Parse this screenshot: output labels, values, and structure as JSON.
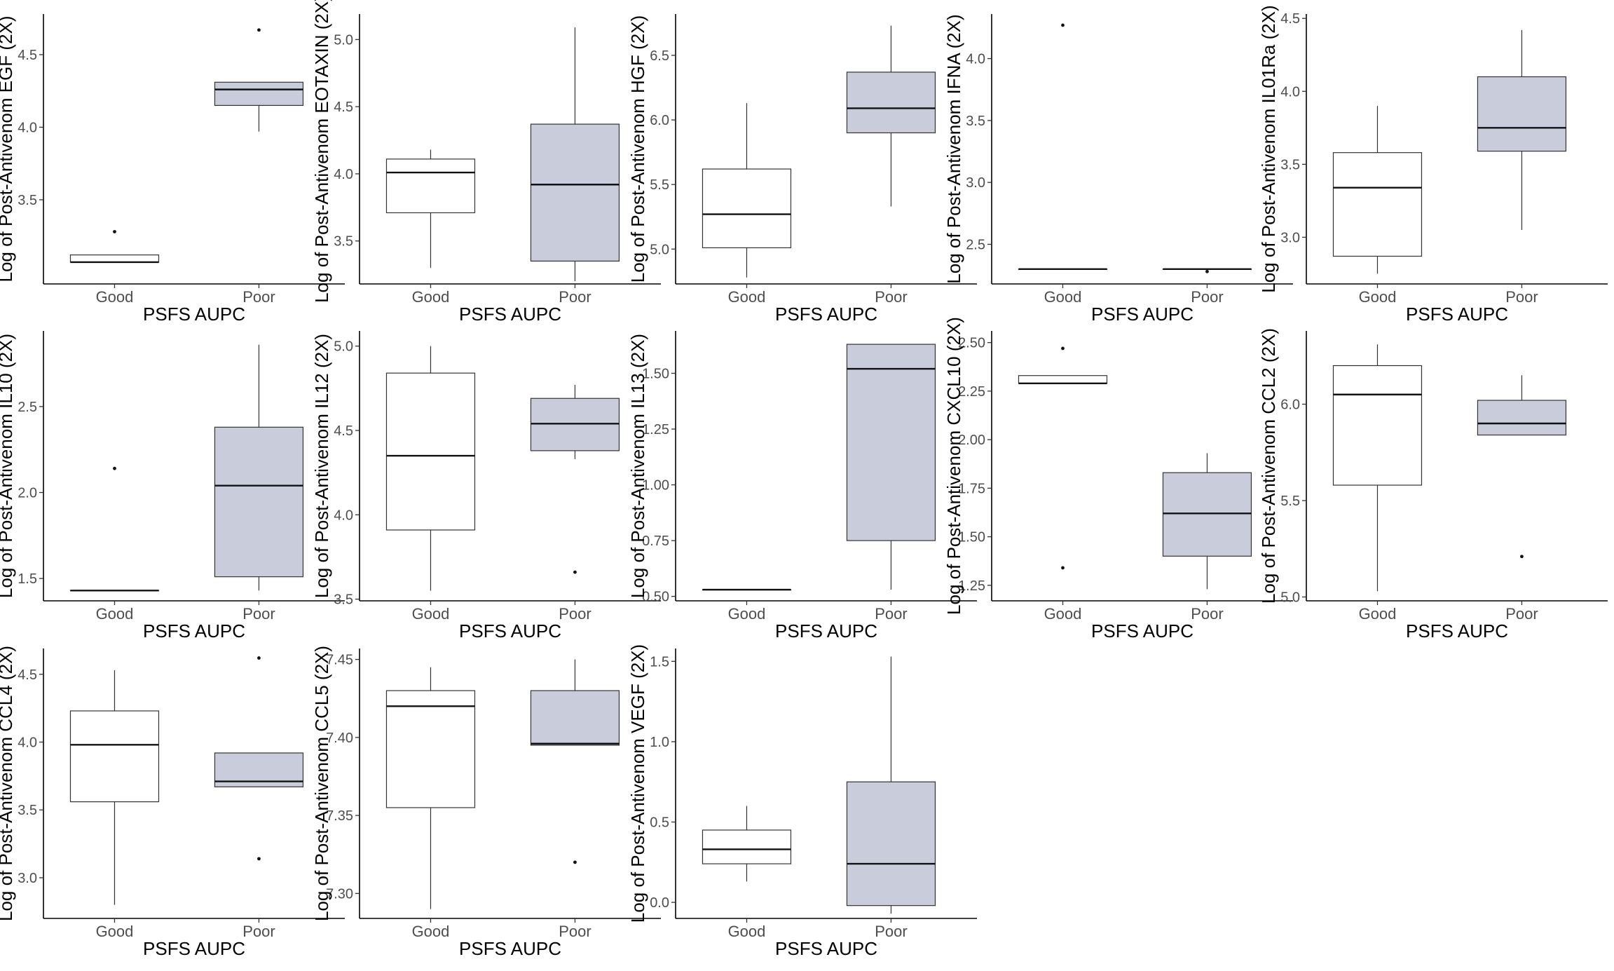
{
  "colors": {
    "good_fill": "#ffffff",
    "poor_fill": "#c9ccdb",
    "stroke": "#333333",
    "axis": "#000000"
  },
  "chart_data": [
    {
      "type": "box",
      "title": "",
      "xlabel": "PSFS AUPC",
      "ylabel": "Log of Post-Antivenom EGF (2X)",
      "categories": [
        "Good",
        "Poor"
      ],
      "ylim": [
        2.92,
        4.78
      ],
      "yticks": [
        {
          "v": 3.5,
          "label": "3.5"
        },
        {
          "v": 4.0,
          "label": "4.0"
        },
        {
          "v": 4.5,
          "label": "4.5"
        }
      ],
      "boxes": [
        {
          "q1": 3.07,
          "median": 3.07,
          "q3": 3.12,
          "whisker_low": 3.07,
          "whisker_high": 3.12,
          "outliers": [
            3.28
          ]
        },
        {
          "q1": 4.15,
          "median": 4.26,
          "q3": 4.31,
          "whisker_low": 3.97,
          "whisker_high": 4.31,
          "outliers": [
            4.67
          ]
        }
      ]
    },
    {
      "type": "box",
      "title": "",
      "xlabel": "PSFS AUPC",
      "ylabel": "Log of Post-Antivenom EOTAXIN (2X)",
      "categories": [
        "Good",
        "Poor"
      ],
      "ylim": [
        3.18,
        5.19
      ],
      "yticks": [
        {
          "v": 3.5,
          "label": "3.5"
        },
        {
          "v": 4.0,
          "label": "4.0"
        },
        {
          "v": 4.5,
          "label": "4.5"
        },
        {
          "v": 5.0,
          "label": "5.0"
        }
      ],
      "boxes": [
        {
          "q1": 3.71,
          "median": 4.01,
          "q3": 4.11,
          "whisker_low": 3.3,
          "whisker_high": 4.18,
          "outliers": []
        },
        {
          "q1": 3.35,
          "median": 3.92,
          "q3": 4.37,
          "whisker_low": 3.2,
          "whisker_high": 5.09,
          "outliers": []
        }
      ]
    },
    {
      "type": "box",
      "title": "",
      "xlabel": "PSFS AUPC",
      "ylabel": "Log of Post-Antivenom HGF (2X)",
      "categories": [
        "Good",
        "Poor"
      ],
      "ylim": [
        4.73,
        6.82
      ],
      "yticks": [
        {
          "v": 5.0,
          "label": "5.0"
        },
        {
          "v": 5.5,
          "label": "5.5"
        },
        {
          "v": 6.0,
          "label": "6.0"
        },
        {
          "v": 6.5,
          "label": "6.5"
        }
      ],
      "boxes": [
        {
          "q1": 5.01,
          "median": 5.27,
          "q3": 5.62,
          "whisker_low": 4.78,
          "whisker_high": 6.13,
          "outliers": []
        },
        {
          "q1": 5.9,
          "median": 6.09,
          "q3": 6.37,
          "whisker_low": 5.33,
          "whisker_high": 6.73,
          "outliers": []
        }
      ]
    },
    {
      "type": "box",
      "title": "",
      "xlabel": "PSFS AUPC",
      "ylabel": "Log of Post-Antivenom IFNA (2X)",
      "categories": [
        "Good",
        "Poor"
      ],
      "ylim": [
        2.18,
        4.36
      ],
      "yticks": [
        {
          "v": 2.5,
          "label": "2.5"
        },
        {
          "v": 3.0,
          "label": "3.0"
        },
        {
          "v": 3.5,
          "label": "3.5"
        },
        {
          "v": 4.0,
          "label": "4.0"
        }
      ],
      "boxes": [
        {
          "q1": 2.3,
          "median": 2.3,
          "q3": 2.3,
          "whisker_low": 2.3,
          "whisker_high": 2.3,
          "outliers": [
            4.27
          ]
        },
        {
          "q1": 2.3,
          "median": 2.3,
          "q3": 2.3,
          "whisker_low": 2.3,
          "whisker_high": 2.3,
          "outliers": [
            2.28
          ]
        }
      ]
    },
    {
      "type": "box",
      "title": "",
      "xlabel": "PSFS AUPC",
      "ylabel": "Log of Post-Antivenom IL01Ra (2X)",
      "categories": [
        "Good",
        "Poor"
      ],
      "ylim": [
        2.68,
        4.53
      ],
      "yticks": [
        {
          "v": 3.0,
          "label": "3.0"
        },
        {
          "v": 3.5,
          "label": "3.5"
        },
        {
          "v": 4.0,
          "label": "4.0"
        },
        {
          "v": 4.5,
          "label": "4.5"
        }
      ],
      "boxes": [
        {
          "q1": 2.87,
          "median": 3.34,
          "q3": 3.58,
          "whisker_low": 2.75,
          "whisker_high": 3.9,
          "outliers": []
        },
        {
          "q1": 3.59,
          "median": 3.75,
          "q3": 4.1,
          "whisker_low": 3.05,
          "whisker_high": 4.42,
          "outliers": []
        }
      ]
    },
    {
      "type": "box",
      "title": "",
      "xlabel": "PSFS AUPC",
      "ylabel": "Log of Post-Antivenom IL10 (2X)",
      "categories": [
        "Good",
        "Poor"
      ],
      "ylim": [
        1.37,
        2.94
      ],
      "yticks": [
        {
          "v": 1.5,
          "label": "1.5"
        },
        {
          "v": 2.0,
          "label": "2.0"
        },
        {
          "v": 2.5,
          "label": "2.5"
        }
      ],
      "boxes": [
        {
          "q1": 1.43,
          "median": 1.43,
          "q3": 1.43,
          "whisker_low": 1.43,
          "whisker_high": 1.43,
          "outliers": [
            2.14
          ]
        },
        {
          "q1": 1.51,
          "median": 2.04,
          "q3": 2.38,
          "whisker_low": 1.43,
          "whisker_high": 2.86,
          "outliers": []
        }
      ]
    },
    {
      "type": "box",
      "title": "",
      "xlabel": "PSFS AUPC",
      "ylabel": "Log of Post-Antivenom IL12 (2X)",
      "categories": [
        "Good",
        "Poor"
      ],
      "ylim": [
        3.49,
        5.09
      ],
      "yticks": [
        {
          "v": 3.5,
          "label": "3.5"
        },
        {
          "v": 4.0,
          "label": "4.0"
        },
        {
          "v": 4.5,
          "label": "4.5"
        },
        {
          "v": 5.0,
          "label": "5.0"
        }
      ],
      "boxes": [
        {
          "q1": 3.91,
          "median": 4.35,
          "q3": 4.84,
          "whisker_low": 3.55,
          "whisker_high": 5.0,
          "outliers": []
        },
        {
          "q1": 4.38,
          "median": 4.54,
          "q3": 4.69,
          "whisker_low": 4.33,
          "whisker_high": 4.77,
          "outliers": [
            3.66
          ]
        }
      ]
    },
    {
      "type": "box",
      "title": "",
      "xlabel": "PSFS AUPC",
      "ylabel": "Log of Post-Antivenom IL13 (2X)",
      "categories": [
        "Good",
        "Poor"
      ],
      "ylim": [
        0.48,
        1.69
      ],
      "yticks": [
        {
          "v": 0.5,
          "label": "0.50"
        },
        {
          "v": 0.75,
          "label": "0.75"
        },
        {
          "v": 1.0,
          "label": "1.00"
        },
        {
          "v": 1.25,
          "label": "1.25"
        },
        {
          "v": 1.5,
          "label": "1.50"
        }
      ],
      "boxes": [
        {
          "q1": 0.53,
          "median": 0.53,
          "q3": 0.53,
          "whisker_low": 0.53,
          "whisker_high": 0.53,
          "outliers": []
        },
        {
          "q1": 0.75,
          "median": 1.52,
          "q3": 1.63,
          "whisker_low": 0.53,
          "whisker_high": 1.63,
          "outliers": []
        }
      ]
    },
    {
      "type": "box",
      "title": "",
      "xlabel": "PSFS AUPC",
      "ylabel": "Log of Post-Antivenom CXCL10 (2X)",
      "categories": [
        "Good",
        "Poor"
      ],
      "ylim": [
        1.17,
        2.56
      ],
      "yticks": [
        {
          "v": 1.25,
          "label": "1.25"
        },
        {
          "v": 1.5,
          "label": "1.50"
        },
        {
          "v": 1.75,
          "label": "1.75"
        },
        {
          "v": 2.0,
          "label": "2.00"
        },
        {
          "v": 2.25,
          "label": "2.25"
        },
        {
          "v": 2.5,
          "label": "2.50"
        }
      ],
      "boxes": [
        {
          "q1": 2.29,
          "median": 2.29,
          "q3": 2.33,
          "whisker_low": 2.29,
          "whisker_high": 2.33,
          "outliers": [
            2.47,
            1.34
          ]
        },
        {
          "q1": 1.4,
          "median": 1.62,
          "q3": 1.83,
          "whisker_low": 1.23,
          "whisker_high": 1.93,
          "outliers": []
        }
      ]
    },
    {
      "type": "box",
      "title": "",
      "xlabel": "PSFS AUPC",
      "ylabel": "Log of Post-Antivenom CCL2 (2X)",
      "categories": [
        "Good",
        "Poor"
      ],
      "ylim": [
        4.98,
        6.38
      ],
      "yticks": [
        {
          "v": 5.0,
          "label": "5.0"
        },
        {
          "v": 5.5,
          "label": "5.5"
        },
        {
          "v": 6.0,
          "label": "6.0"
        }
      ],
      "boxes": [
        {
          "q1": 5.58,
          "median": 6.05,
          "q3": 6.2,
          "whisker_low": 5.03,
          "whisker_high": 6.31,
          "outliers": []
        },
        {
          "q1": 5.84,
          "median": 5.9,
          "q3": 6.02,
          "whisker_low": 5.84,
          "whisker_high": 6.15,
          "outliers": [
            5.21
          ]
        }
      ]
    },
    {
      "type": "box",
      "title": "",
      "xlabel": "PSFS AUPC",
      "ylabel": "Log of Post-Antivenom CCL4 (2X)",
      "categories": [
        "Good",
        "Poor"
      ],
      "ylim": [
        2.7,
        4.69
      ],
      "yticks": [
        {
          "v": 3.0,
          "label": "3.0"
        },
        {
          "v": 3.5,
          "label": "3.5"
        },
        {
          "v": 4.0,
          "label": "4.0"
        },
        {
          "v": 4.5,
          "label": "4.5"
        }
      ],
      "boxes": [
        {
          "q1": 3.56,
          "median": 3.98,
          "q3": 4.23,
          "whisker_low": 2.8,
          "whisker_high": 4.53,
          "outliers": []
        },
        {
          "q1": 3.67,
          "median": 3.71,
          "q3": 3.92,
          "whisker_low": 3.67,
          "whisker_high": 3.92,
          "outliers": [
            4.62,
            3.14
          ]
        }
      ]
    },
    {
      "type": "box",
      "title": "",
      "xlabel": "PSFS AUPC",
      "ylabel": "Log of Post-Antivenom CCL5 (2X)",
      "categories": [
        "Good",
        "Poor"
      ],
      "ylim": [
        7.284,
        7.457
      ],
      "yticks": [
        {
          "v": 7.3,
          "label": "7.30"
        },
        {
          "v": 7.35,
          "label": "7.35"
        },
        {
          "v": 7.4,
          "label": "7.40"
        },
        {
          "v": 7.45,
          "label": "7.45"
        }
      ],
      "boxes": [
        {
          "q1": 7.355,
          "median": 7.42,
          "q3": 7.43,
          "whisker_low": 7.29,
          "whisker_high": 7.445,
          "outliers": []
        },
        {
          "q1": 7.395,
          "median": 7.396,
          "q3": 7.43,
          "whisker_low": 7.395,
          "whisker_high": 7.45,
          "outliers": [
            7.32
          ]
        }
      ]
    },
    {
      "type": "box",
      "title": "",
      "xlabel": "PSFS AUPC",
      "ylabel": "Log of Post-Antivenom VEGF (2X)",
      "categories": [
        "Good",
        "Poor"
      ],
      "ylim": [
        -0.1,
        1.58
      ],
      "yticks": [
        {
          "v": 0.0,
          "label": "0.0"
        },
        {
          "v": 0.5,
          "label": "0.5"
        },
        {
          "v": 1.0,
          "label": "1.0"
        },
        {
          "v": 1.5,
          "label": "1.5"
        }
      ],
      "boxes": [
        {
          "q1": 0.24,
          "median": 0.33,
          "q3": 0.45,
          "whisker_low": 0.13,
          "whisker_high": 0.6,
          "outliers": []
        },
        {
          "q1": -0.02,
          "median": 0.24,
          "q3": 0.75,
          "whisker_low": -0.07,
          "whisker_high": 1.53,
          "outliers": []
        }
      ]
    }
  ]
}
